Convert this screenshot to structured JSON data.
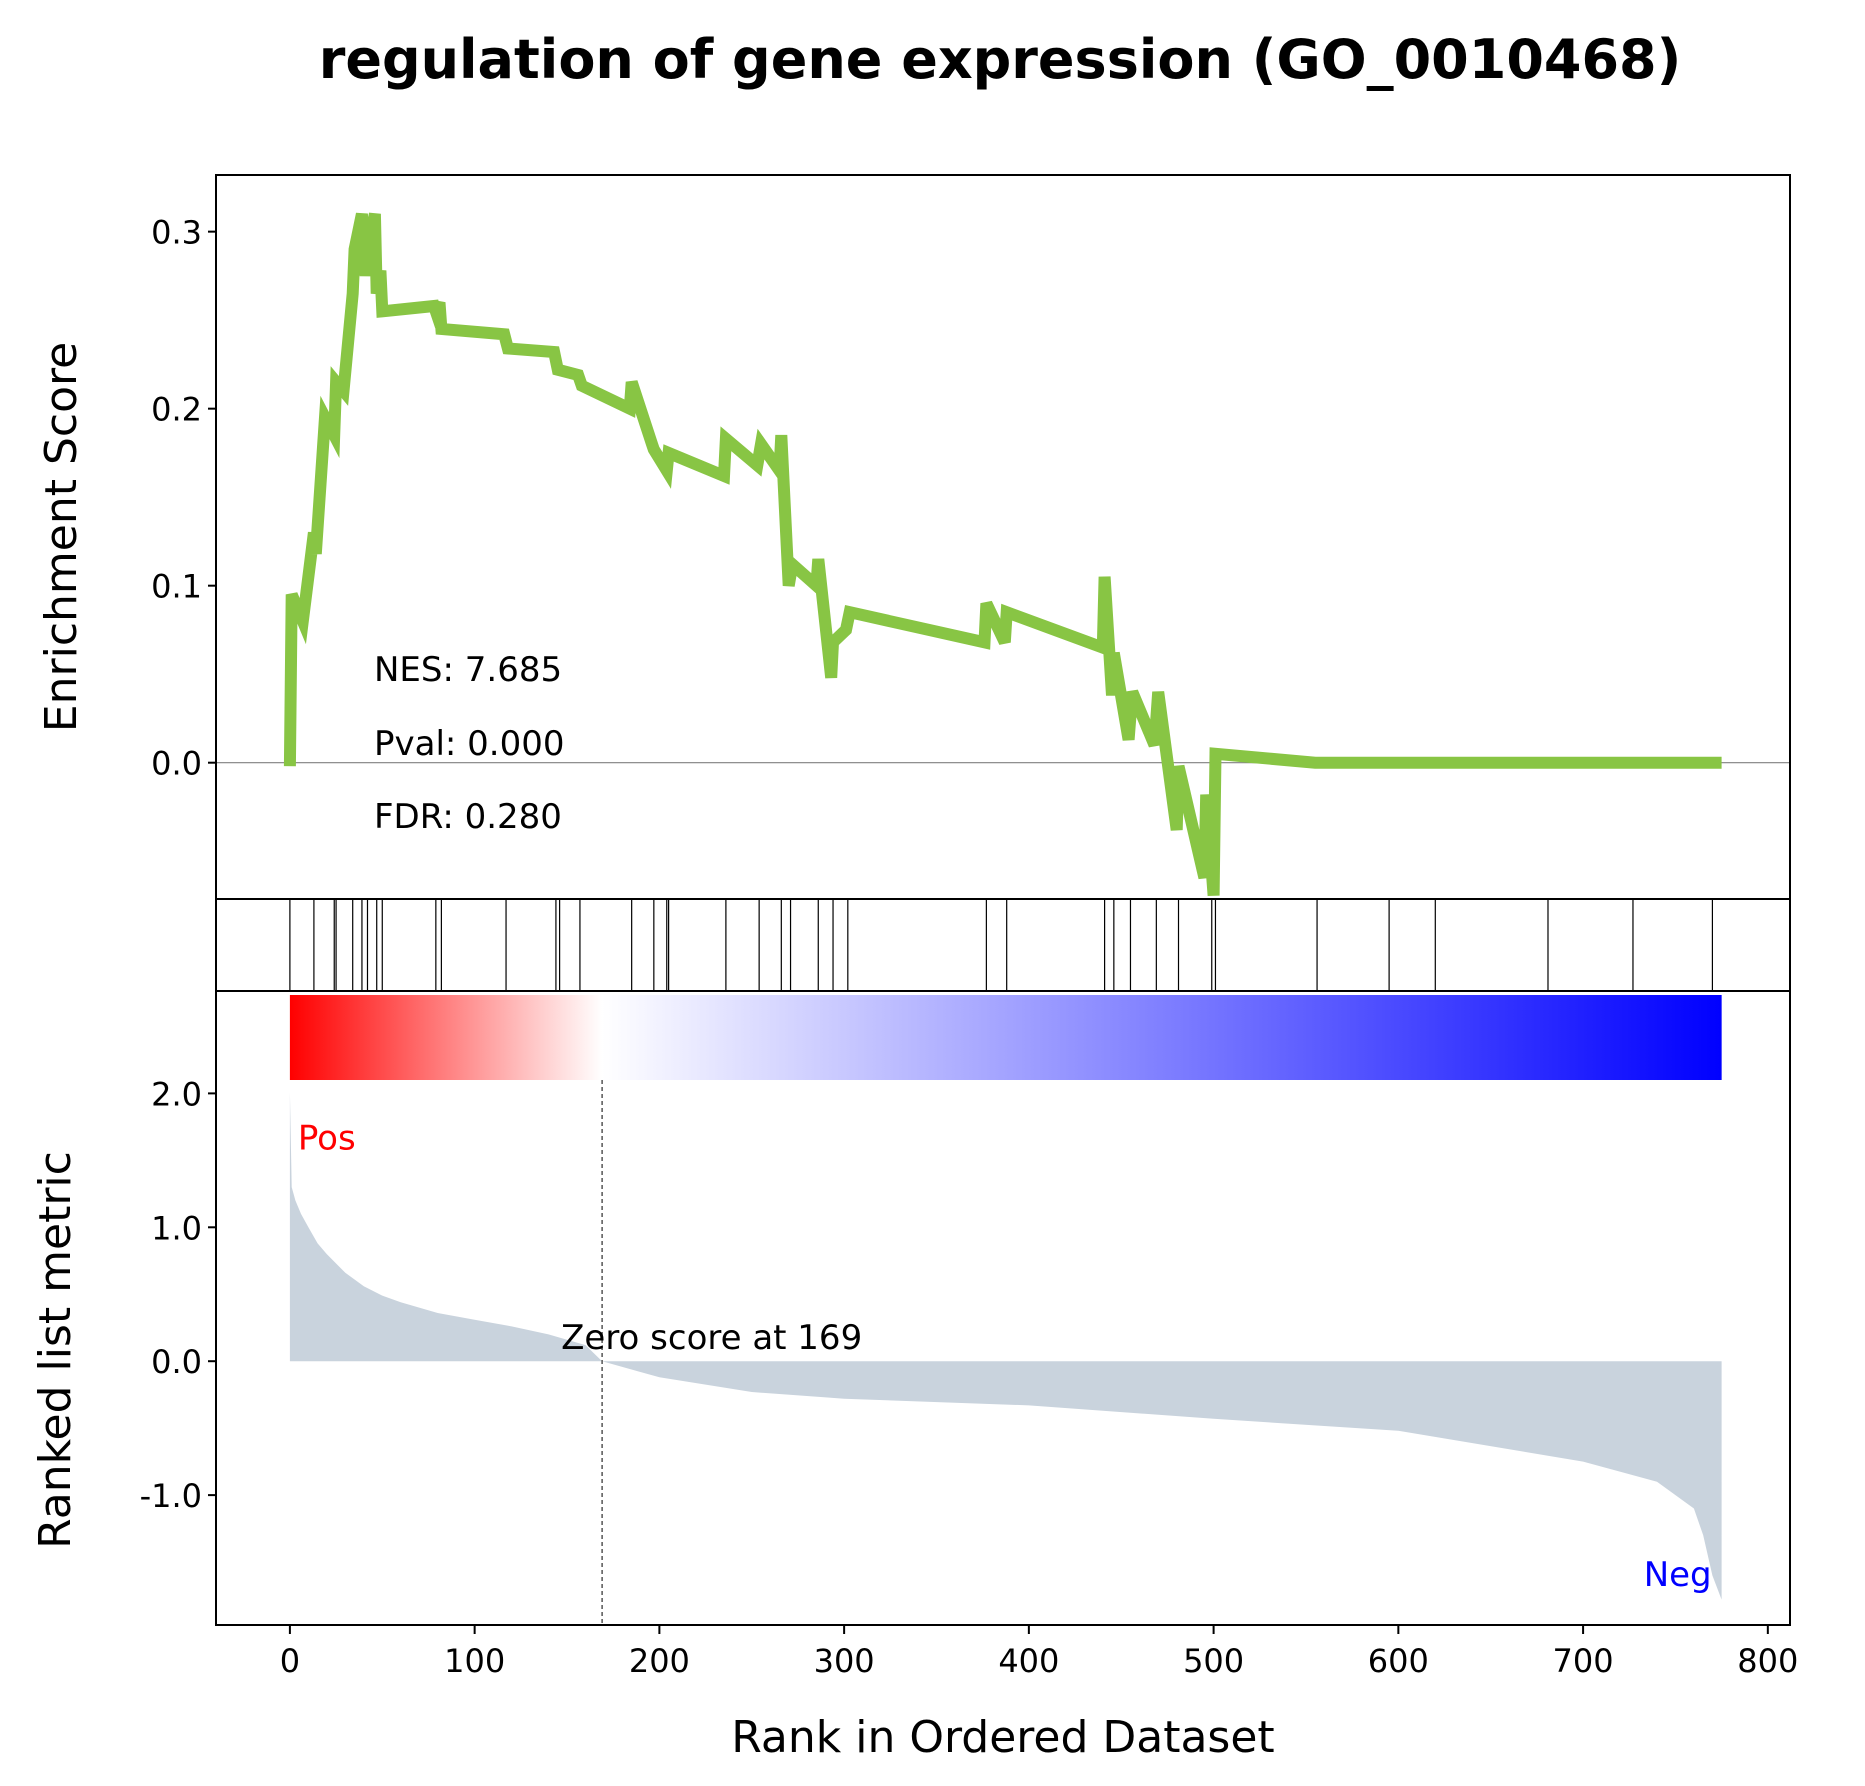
{
  "chart_data": {
    "type": "line",
    "title": "regulation of gene expression (GO_0010468)",
    "xlabel": "Rank in Ordered Dataset",
    "xlim": [
      -40,
      812
    ],
    "x_ticks": [
      "0",
      "100",
      "200",
      "300",
      "400",
      "500",
      "600",
      "700",
      "800"
    ],
    "x_tick_values": [
      0,
      100,
      200,
      300,
      400,
      500,
      600,
      700,
      800
    ],
    "colors": {
      "es_line": "#88c544",
      "metric_fill": "#c9d3dd",
      "pos_label": "#ff0000",
      "neg_label": "#0000ff",
      "heatmap": [
        "#ff0000",
        "#ffffff",
        "#0000ff"
      ]
    },
    "enrichment": {
      "ylabel": "Enrichment Score",
      "ylim": [
        -0.077,
        0.332
      ],
      "y_ticks": [
        "0.0",
        "0.1",
        "0.2",
        "0.3"
      ],
      "y_tick_values": [
        0.0,
        0.1,
        0.2,
        0.3
      ],
      "stats": [
        "NES: 7.685",
        "Pval: 0.000",
        "FDR: 0.280"
      ],
      "x": [
        0,
        1,
        7,
        13,
        14,
        19,
        24,
        25,
        29,
        34,
        35,
        39,
        41,
        42,
        46,
        47,
        49,
        50,
        78,
        79,
        81,
        82,
        116,
        118,
        143,
        145,
        156,
        158,
        184,
        185,
        196,
        197,
        204,
        205,
        235,
        236,
        253,
        255,
        265,
        266,
        270,
        272,
        285,
        286,
        293,
        294,
        301,
        303,
        376,
        377,
        387,
        388,
        440,
        441,
        445,
        446,
        454,
        456,
        468,
        470,
        480,
        481,
        495,
        496,
        500,
        501,
        555,
        556,
        594,
        595,
        619,
        620,
        680,
        681,
        726,
        727,
        769,
        770,
        775
      ],
      "y": [
        -0.002,
        0.095,
        0.08,
        0.13,
        0.118,
        0.195,
        0.185,
        0.215,
        0.21,
        0.265,
        0.29,
        0.31,
        0.275,
        0.29,
        0.31,
        0.265,
        0.278,
        0.255,
        0.258,
        0.255,
        0.26,
        0.245,
        0.242,
        0.234,
        0.232,
        0.222,
        0.219,
        0.213,
        0.2,
        0.215,
        0.18,
        0.177,
        0.165,
        0.175,
        0.162,
        0.183,
        0.168,
        0.18,
        0.165,
        0.185,
        0.1,
        0.112,
        0.1,
        0.115,
        0.048,
        0.068,
        0.075,
        0.085,
        0.068,
        0.09,
        0.068,
        0.085,
        0.065,
        0.105,
        0.038,
        0.062,
        0.013,
        0.04,
        0.01,
        0.04,
        -0.038,
        -0.002,
        -0.065,
        -0.018,
        -0.075,
        0.005,
        0.0,
        0.0,
        0.0,
        0.0,
        0.0,
        0.0,
        0.0,
        0.0,
        0.0,
        0.0,
        0.0,
        0.0,
        0.0
      ]
    },
    "hits": [
      0,
      13,
      24,
      25,
      34,
      39,
      42,
      47,
      50,
      79,
      82,
      117,
      144,
      146,
      157,
      185,
      197,
      204,
      205,
      236,
      254,
      266,
      271,
      286,
      294,
      302,
      377,
      388,
      441,
      446,
      455,
      469,
      481,
      499,
      501,
      556,
      595,
      620,
      681,
      727,
      770
    ],
    "ranked": {
      "ylabel": "Ranked list metric",
      "ylim": [
        -1.97,
        2.1
      ],
      "y_ticks": [
        "2.0",
        "1.0",
        "0.0",
        "-1.0"
      ],
      "y_tick_values": [
        2.0,
        1.0,
        0.0,
        -1.0
      ],
      "x": [
        0,
        1,
        3,
        6,
        10,
        15,
        20,
        30,
        40,
        50,
        60,
        80,
        100,
        120,
        140,
        160,
        169,
        200,
        250,
        300,
        400,
        500,
        600,
        700,
        740,
        760,
        765,
        770,
        775
      ],
      "y": [
        2.01,
        1.3,
        1.2,
        1.1,
        1.0,
        0.88,
        0.8,
        0.66,
        0.56,
        0.49,
        0.44,
        0.36,
        0.31,
        0.26,
        0.2,
        0.12,
        0.0,
        -0.12,
        -0.23,
        -0.28,
        -0.33,
        -0.43,
        -0.52,
        -0.75,
        -0.9,
        -1.1,
        -1.3,
        -1.6,
        -1.78
      ],
      "zero_cross_label": "Zero score at 169",
      "zero_cross_x": 169,
      "pos_label": "Pos",
      "neg_label": "Neg"
    }
  }
}
